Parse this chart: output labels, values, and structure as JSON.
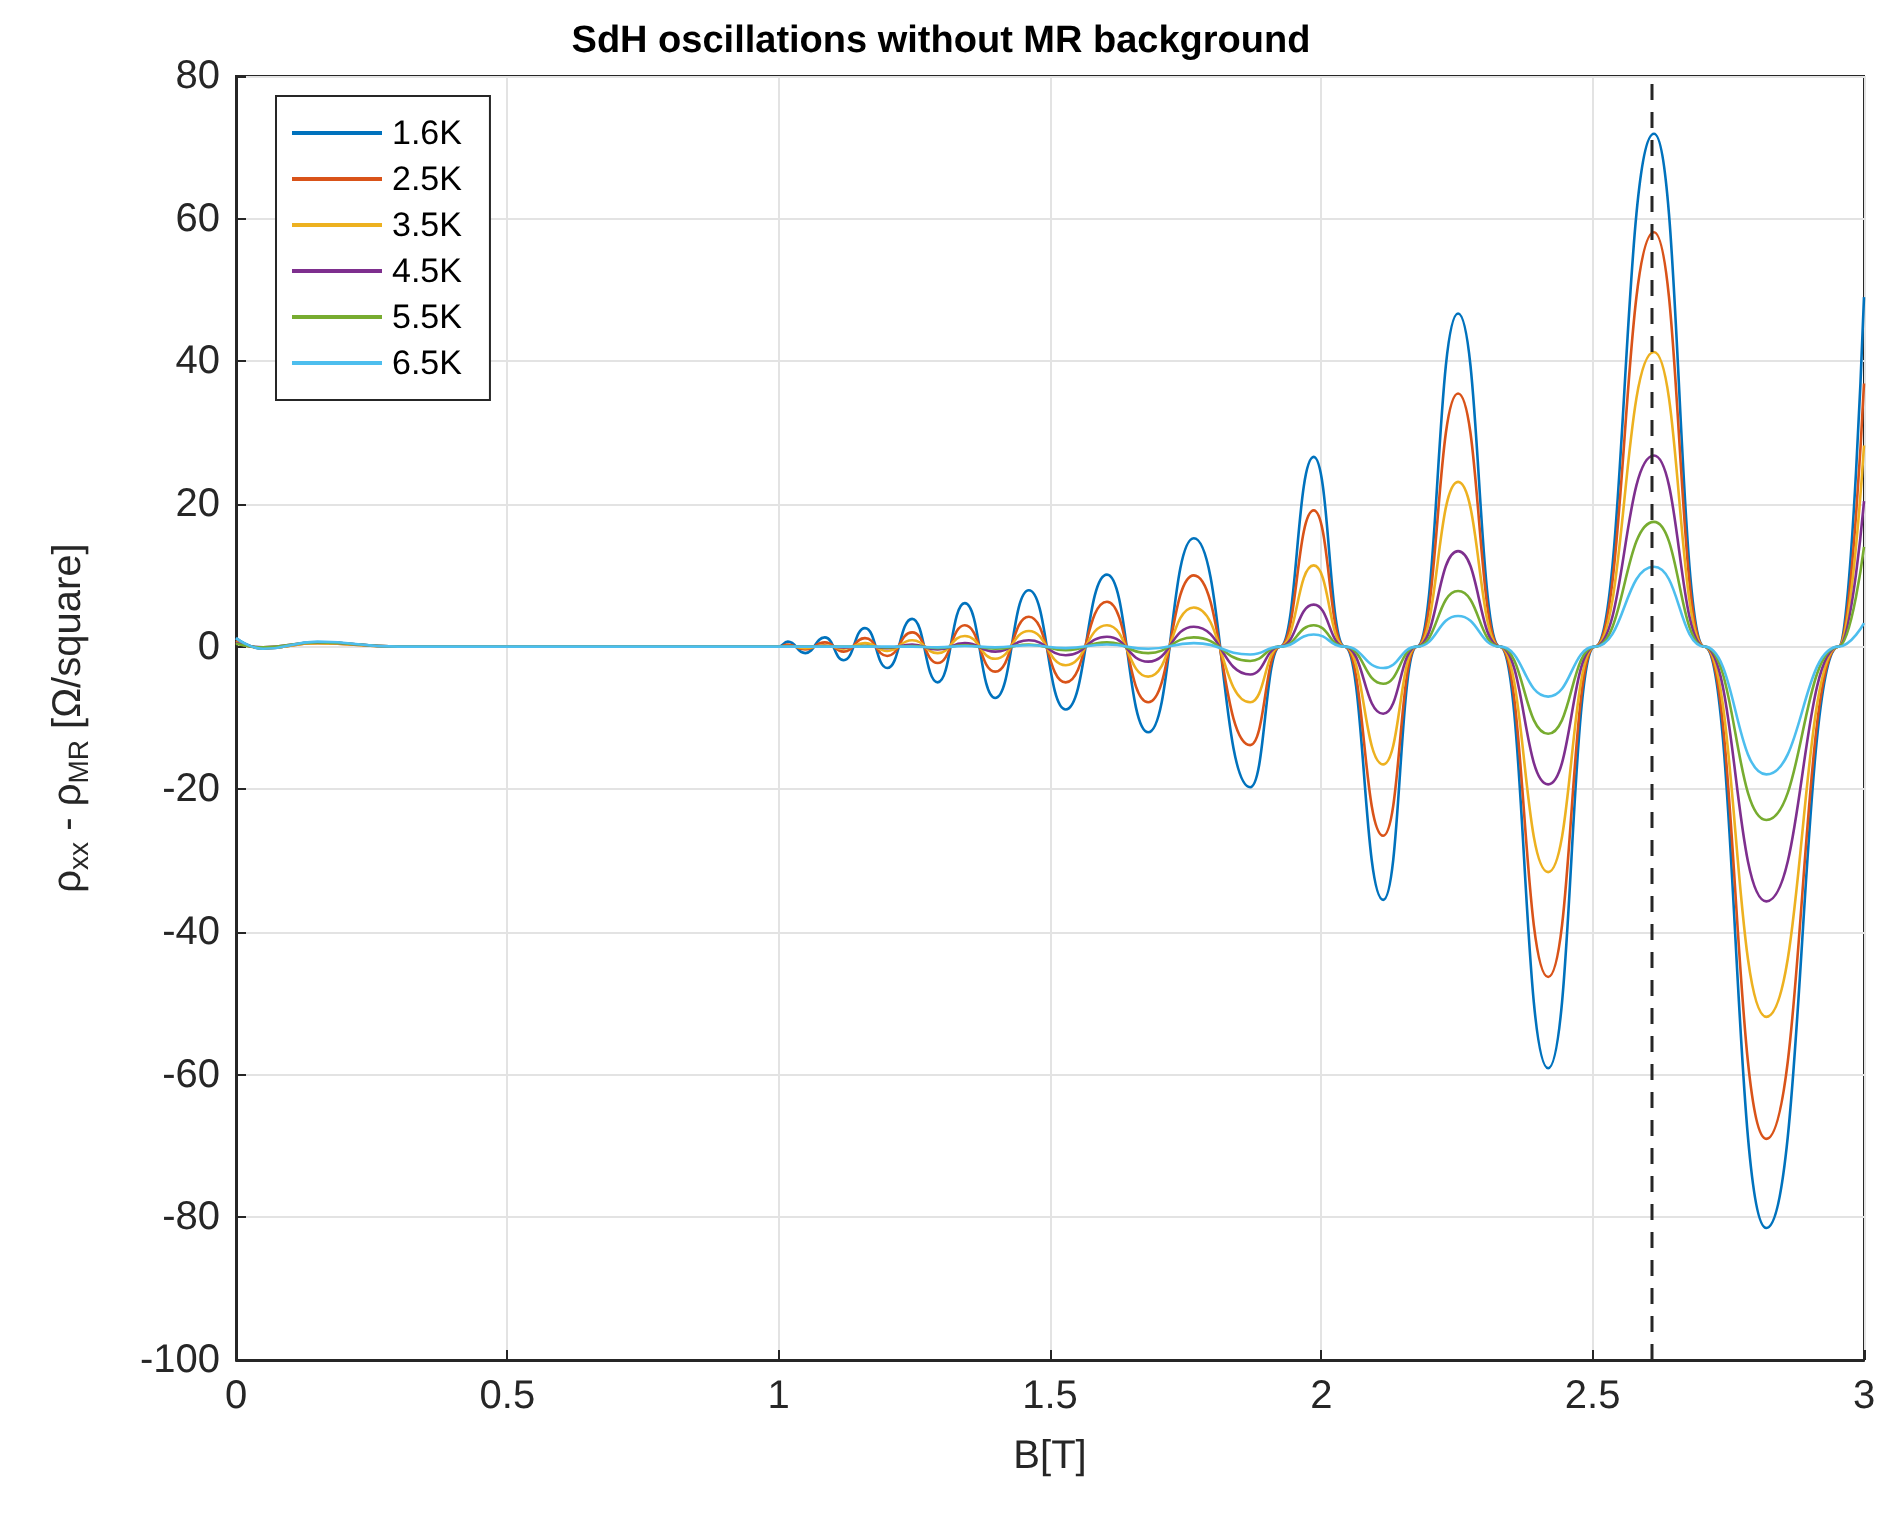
{
  "chart_data": {
    "type": "line",
    "title": "SdH oscillations without MR background",
    "xlabel": "B[T]",
    "ylabel": "ρ$_{xx}$ - ρ$_{MR}$ [Ω/square]",
    "x": [
      0,
      0.05,
      0.15,
      0.3,
      1.0,
      1.017,
      1.049,
      1.085,
      1.12,
      1.159,
      1.2,
      1.246,
      1.293,
      1.343,
      1.399,
      1.461,
      1.529,
      1.605,
      1.681,
      1.765,
      1.869,
      1.924,
      1.986,
      2.043,
      2.114,
      2.176,
      2.252,
      2.329,
      2.418,
      2.504,
      2.613,
      2.706,
      2.82,
      2.953,
      3.0
    ],
    "series": [
      {
        "name": "1.6K",
        "color": "#0072bd",
        "values": [
          1.2,
          -0.3,
          0.6,
          0,
          0,
          0.7,
          -0.9,
          1.3,
          -1.9,
          2.6,
          -3.0,
          3.9,
          -5.0,
          6.1,
          -7.2,
          7.9,
          -8.8,
          10.1,
          -12.0,
          15.2,
          -19.7,
          0,
          26.6,
          0,
          -35.5,
          0,
          46.7,
          0,
          -59.1,
          0,
          71.9,
          0,
          -81.5,
          0,
          49
        ]
      },
      {
        "name": "2.5K",
        "color": "#d95319",
        "values": [
          0.8,
          -0.2,
          0.5,
          0,
          0,
          0.3,
          -0.4,
          0.6,
          -0.7,
          1.2,
          -1.3,
          2.0,
          -2.3,
          3.0,
          -3.5,
          4.2,
          -5.0,
          6.3,
          -7.8,
          10.0,
          -13.8,
          0,
          19.1,
          0,
          -26.5,
          0,
          35.5,
          0,
          -46.3,
          0,
          58.1,
          0,
          -69,
          0,
          36.9
        ]
      },
      {
        "name": "3.5K",
        "color": "#edb120",
        "values": [
          0.6,
          -0.2,
          0.5,
          0,
          0,
          0.1,
          -0.2,
          0.2,
          -0.3,
          0.5,
          -0.6,
          0.9,
          -0.9,
          1.5,
          -1.7,
          2.2,
          -2.6,
          3.0,
          -4.2,
          5.5,
          -7.8,
          0,
          11.4,
          0,
          -16.5,
          0,
          23.1,
          0,
          -31.6,
          0,
          41.3,
          0,
          -51.9,
          0,
          28.2
        ]
      },
      {
        "name": "4.5K",
        "color": "#7e2f8e",
        "values": [
          0.5,
          -0.1,
          0.6,
          0,
          0,
          0,
          0,
          0.1,
          -0.1,
          0.1,
          -0.2,
          0.3,
          -0.4,
          0.5,
          -0.7,
          0.9,
          -1.2,
          1.4,
          -2.1,
          2.8,
          -3.9,
          0,
          5.9,
          0,
          -9.4,
          0,
          13.4,
          0,
          -19.3,
          0,
          26.8,
          0,
          -35.7,
          0,
          20.4
        ]
      },
      {
        "name": "5.5K",
        "color": "#77ac30",
        "values": [
          0.4,
          -0.1,
          0.6,
          0,
          0,
          0,
          0,
          0,
          0,
          0.1,
          -0.1,
          0.1,
          -0.2,
          0.2,
          -0.3,
          0.3,
          -0.5,
          0.6,
          -0.9,
          1.3,
          -2.0,
          0,
          3.0,
          0,
          -5.2,
          0,
          7.8,
          0,
          -12.2,
          0,
          17.5,
          0,
          -24.3,
          0,
          14.0
        ]
      },
      {
        "name": "6.5K",
        "color": "#4dbeee",
        "values": [
          1.2,
          -0.3,
          0.7,
          0,
          0,
          0,
          0,
          0,
          0,
          0,
          0,
          0,
          -0.1,
          0.1,
          -0.1,
          0.2,
          -0.2,
          0.3,
          -0.3,
          0.5,
          -1.1,
          0,
          1.7,
          0,
          -3.0,
          0,
          4.3,
          0,
          -7.0,
          0,
          11.2,
          0,
          -17.9,
          0,
          3.3
        ]
      }
    ],
    "xlim": [
      0,
      3
    ],
    "xticks": [
      0,
      0.5,
      1,
      1.5,
      2,
      2.5,
      3
    ],
    "ylim": [
      -100,
      80
    ],
    "yticks": [
      -100,
      -80,
      -60,
      -40,
      -20,
      0,
      20,
      40,
      60,
      80
    ],
    "ref_lines": [
      {
        "axis": "x",
        "value": 2.61,
        "color": "#262626",
        "line_style": "dashed"
      }
    ],
    "grid": true,
    "legend": "top left",
    "marker": "none",
    "line_style": "solid"
  }
}
